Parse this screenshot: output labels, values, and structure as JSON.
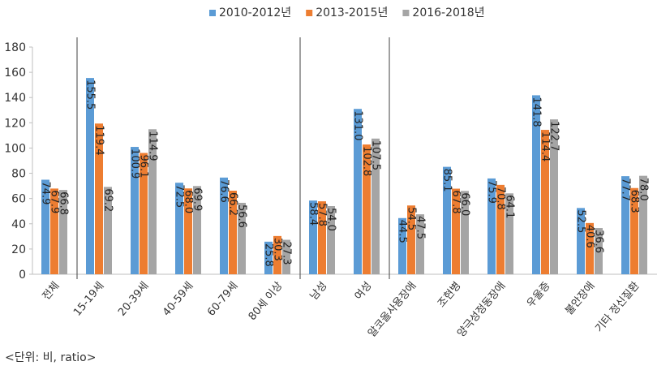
{
  "chart_data": {
    "type": "bar",
    "categories": [
      "전체",
      "15-19세",
      "20-39세",
      "40-59세",
      "60-79세",
      "80세 이상",
      "남성",
      "여성",
      "알코올사용장애",
      "조현병",
      "양극성정동장애",
      "우울증",
      "불안장애",
      "기타 정신질환"
    ],
    "series": [
      {
        "name": "2010-2012년",
        "color": "#5b9bd5",
        "values": [
          74.9,
          155.5,
          100.9,
          72.5,
          76.6,
          25.8,
          58.4,
          131.0,
          44.5,
          85.1,
          75.9,
          141.8,
          52.5,
          77.7
        ]
      },
      {
        "name": "2013-2015년",
        "color": "#ed7d31",
        "values": [
          67.9,
          119.4,
          96.1,
          68.0,
          66.2,
          30.3,
          57.8,
          102.8,
          54.5,
          67.8,
          70.8,
          114.4,
          40.6,
          68.3
        ]
      },
      {
        "name": "2016-2018년",
        "color": "#a5a5a5",
        "values": [
          66.8,
          69.2,
          114.9,
          69.9,
          56.6,
          27.3,
          54.0,
          107.5,
          47.5,
          66.0,
          64.1,
          122.7,
          36.6,
          78.0
        ]
      }
    ],
    "ylim": [
      0,
      180
    ],
    "yticks": [
      0,
      20,
      40,
      60,
      80,
      100,
      120,
      140,
      160,
      180
    ],
    "legend_position": "top",
    "group_separators_after": [
      0,
      5,
      7
    ]
  },
  "unit_note": "<단위: 비, ratio>"
}
